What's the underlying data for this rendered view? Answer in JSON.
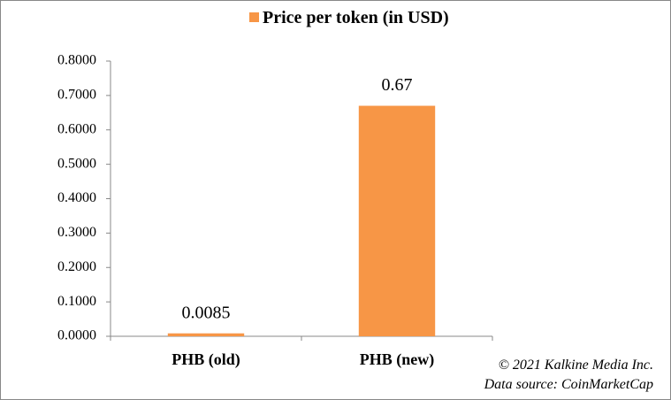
{
  "chart_data": {
    "type": "bar",
    "categories": [
      "PHB (old)",
      "PHB (new)"
    ],
    "series": [
      {
        "name": "Price per token (in USD)",
        "color": "#f79646",
        "values": [
          0.0085,
          0.67
        ]
      }
    ],
    "ylim": [
      0,
      0.8
    ],
    "yticks": [
      {
        "value": 0,
        "label": "0.0000"
      },
      {
        "value": 0.1,
        "label": "0.1000"
      },
      {
        "value": 0.2,
        "label": "0.2000"
      },
      {
        "value": 0.3,
        "label": "0.3000"
      },
      {
        "value": 0.4,
        "label": "0.4000"
      },
      {
        "value": 0.5,
        "label": "0.5000"
      },
      {
        "value": 0.6,
        "label": "0.6000"
      },
      {
        "value": 0.7,
        "label": "0.7000"
      },
      {
        "value": 0.8,
        "label": "0.8000"
      }
    ],
    "grid": false,
    "legend": "top",
    "annotations": [
      "© 2021 Kalkine Media Inc.",
      "Data source:  CoinMarketCap"
    ]
  }
}
